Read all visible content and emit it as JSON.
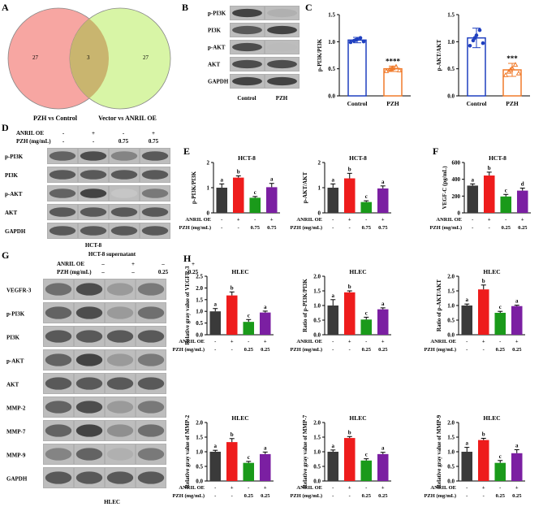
{
  "panels": [
    "A",
    "B",
    "C",
    "D",
    "E",
    "F",
    "G",
    "H"
  ],
  "venn": {
    "left_count": "27",
    "overlap_count": "3",
    "right_count": "27",
    "left_label": "PZH vs Control",
    "right_label": "Vector vs ANRIL OE",
    "colors": {
      "left": "#f7a6a2",
      "right": "#d8f5a6",
      "overlap": "#c9b56f"
    }
  },
  "blotB": {
    "rows": [
      "p-PI3K",
      "PI3K",
      "p-AKT",
      "AKT",
      "GAPDH"
    ],
    "cols": [
      "Control",
      "PZH"
    ],
    "intensity": [
      [
        0.85,
        0.35
      ],
      [
        0.75,
        0.85
      ],
      [
        0.8,
        0.3
      ],
      [
        0.8,
        0.8
      ],
      [
        0.85,
        0.85
      ]
    ]
  },
  "blotD": {
    "cond_rows": [
      {
        "label": "ANRIL OE",
        "vals": [
          "-",
          "+",
          "-",
          "+"
        ]
      },
      {
        "label": "PZH (mg/mL)",
        "vals": [
          "-",
          "-",
          "0.75",
          "0.75"
        ]
      }
    ],
    "rows": [
      "p-PI3K",
      "PI3K",
      "p-AKT",
      "AKT",
      "GAPDH"
    ],
    "intensity": [
      [
        0.7,
        0.8,
        0.55,
        0.75
      ],
      [
        0.75,
        0.75,
        0.75,
        0.75
      ],
      [
        0.7,
        0.85,
        0.25,
        0.6
      ],
      [
        0.75,
        0.75,
        0.75,
        0.75
      ],
      [
        0.75,
        0.75,
        0.75,
        0.75
      ]
    ],
    "footer": "HCT-8"
  },
  "blotG": {
    "header": "HCT-8 supernatant",
    "cond_rows": [
      {
        "label": "ANRIL OE",
        "vals": [
          "–",
          "+",
          "–",
          "+"
        ]
      },
      {
        "label": "PZH (mg/mL)",
        "vals": [
          "–",
          "–",
          "0.25",
          "0.25"
        ]
      }
    ],
    "rows": [
      "VEGFR-3",
      "p-PI3K",
      "PI3K",
      "p-AKT",
      "AKT",
      "MMP-2",
      "MMP-7",
      "MMP-9",
      "GAPDH"
    ],
    "intensity": [
      [
        0.65,
        0.8,
        0.45,
        0.6
      ],
      [
        0.7,
        0.8,
        0.45,
        0.65
      ],
      [
        0.75,
        0.75,
        0.75,
        0.75
      ],
      [
        0.7,
        0.85,
        0.45,
        0.6
      ],
      [
        0.75,
        0.75,
        0.75,
        0.75
      ],
      [
        0.7,
        0.8,
        0.45,
        0.6
      ],
      [
        0.7,
        0.85,
        0.5,
        0.65
      ],
      [
        0.55,
        0.7,
        0.35,
        0.6
      ],
      [
        0.75,
        0.75,
        0.75,
        0.75
      ]
    ],
    "footer": "HLEC"
  },
  "colors": {
    "black": "#3a3a3a",
    "red": "#ee1c1c",
    "green": "#1a9a1a",
    "purple": "#7b1fa2",
    "blue": "#1f3fbf",
    "orange": "#f07a2a"
  },
  "chart_data": [
    {
      "id": "C1",
      "type": "bar",
      "categories": [
        "Control",
        "PZH"
      ],
      "values": [
        1.03,
        0.5
      ],
      "errors": [
        0.05,
        0.05
      ],
      "ylabel": "p-PI3K/PI3K",
      "ylim": [
        0,
        1.5
      ],
      "yticks": [
        "0.0",
        "0.5",
        "1.0",
        "1.5"
      ],
      "sig": [
        "",
        "****"
      ],
      "style": "outline"
    },
    {
      "id": "C2",
      "type": "bar",
      "categories": [
        "Control",
        "PZH"
      ],
      "values": [
        1.07,
        0.48
      ],
      "errors": [
        0.18,
        0.12
      ],
      "ylabel": "p-AKT/AKT",
      "ylim": [
        0,
        1.5
      ],
      "yticks": [
        "0.0",
        "0.5",
        "1.0",
        "1.5"
      ],
      "sig": [
        "",
        "***"
      ],
      "style": "outline"
    },
    {
      "id": "E1",
      "type": "bar",
      "title": "HCT-8",
      "ylabel": "p-PI3K/PI3K",
      "values": [
        1.0,
        1.4,
        0.6,
        1.02
      ],
      "errors": [
        0.15,
        0.07,
        0.05,
        0.15
      ],
      "letters": [
        "a",
        "b",
        "c",
        "a"
      ],
      "ylim": [
        0,
        2
      ],
      "yticks": [
        "0",
        "1",
        "2"
      ],
      "cond": {
        "ANRIL OE": [
          "-",
          "+",
          "-",
          "+"
        ],
        "PZH (mg/mL)": [
          "-",
          "-",
          "0.75",
          "0.75"
        ]
      }
    },
    {
      "id": "E2",
      "type": "bar",
      "title": "HCT-8",
      "ylabel": "p-AKT/AKT",
      "values": [
        1.0,
        1.37,
        0.43,
        0.97
      ],
      "errors": [
        0.15,
        0.2,
        0.05,
        0.1
      ],
      "letters": [
        "a",
        "b",
        "c",
        "a"
      ],
      "ylim": [
        0,
        2
      ],
      "yticks": [
        "0",
        "1",
        "2"
      ],
      "cond": {
        "ANRIL OE": [
          "-",
          "+",
          "-",
          "+"
        ],
        "PZH (mg/mL)": [
          "-",
          "-",
          "0.75",
          "0.75"
        ]
      }
    },
    {
      "id": "F",
      "type": "bar",
      "title": "HCT-8",
      "ylabel": "VEGF-C (pg/mL)",
      "values": [
        325,
        445,
        195,
        265
      ],
      "errors": [
        20,
        40,
        25,
        30
      ],
      "letters": [
        "a",
        "b",
        "c",
        "d"
      ],
      "ylim": [
        0,
        600
      ],
      "yticks": [
        "0",
        "200",
        "400",
        "600"
      ],
      "cond": {
        "ANRIL OE": [
          "-",
          "+",
          "-",
          "+"
        ],
        "PZH (mg/mL)": [
          "-",
          "-",
          "0.25",
          "0.25"
        ]
      }
    },
    {
      "id": "H1",
      "type": "bar",
      "title": "HLEC",
      "ylabel": "Relative gray value of VEGFR-3",
      "values": [
        1.0,
        1.68,
        0.55,
        0.95
      ],
      "errors": [
        0.12,
        0.15,
        0.1,
        0.06
      ],
      "letters": [
        "a",
        "b",
        "c",
        "a"
      ],
      "ylim": [
        0,
        2.5
      ],
      "yticks": [
        "0.0",
        "0.5",
        "1.0",
        "1.5",
        "2.0",
        "2.5"
      ],
      "cond": {
        "ANRIL OE": [
          "-",
          "+",
          "-",
          "+"
        ],
        "PZH (mg/mL)": [
          "-",
          "-",
          "0.25",
          "0.25"
        ]
      }
    },
    {
      "id": "H2",
      "type": "bar",
      "title": "HLEC",
      "ylabel": "Ratio of p-PI3K/PI3K",
      "values": [
        1.0,
        1.45,
        0.52,
        0.87
      ],
      "errors": [
        0.2,
        0.05,
        0.08,
        0.05
      ],
      "letters": [
        "a",
        "b",
        "c",
        "a"
      ],
      "ylim": [
        0,
        2.0
      ],
      "yticks": [
        "0.0",
        "0.5",
        "1.0",
        "1.5",
        "2.0"
      ],
      "cond": {
        "ANRIL OE": [
          "-",
          "+",
          "-",
          "+"
        ],
        "PZH (mg/mL)": [
          "-",
          "-",
          "0.25",
          "0.25"
        ]
      }
    },
    {
      "id": "H3",
      "type": "bar",
      "title": "HLEC",
      "ylabel": "Ratio of p-AKT/AKT",
      "values": [
        1.0,
        1.55,
        0.75,
        0.98
      ],
      "errors": [
        0.05,
        0.15,
        0.05,
        0.03
      ],
      "letters": [
        "a",
        "b",
        "c",
        "a"
      ],
      "ylim": [
        0,
        2.0
      ],
      "yticks": [
        "0.0",
        "0.5",
        "1.0",
        "1.5",
        "2.0"
      ],
      "cond": {
        "ANRIL OE": [
          "-",
          "+",
          "-",
          "+"
        ],
        "PZH (mg/mL)": [
          "-",
          "-",
          "0.25",
          "0.25"
        ]
      }
    },
    {
      "id": "H4",
      "type": "bar",
      "title": "HLEC",
      "ylabel": "Relative gray value of MMP-2",
      "values": [
        1.0,
        1.33,
        0.62,
        0.92
      ],
      "errors": [
        0.05,
        0.12,
        0.05,
        0.07
      ],
      "letters": [
        "a",
        "b",
        "c",
        "a"
      ],
      "ylim": [
        0,
        2.0
      ],
      "yticks": [
        "0.0",
        "0.5",
        "1.0",
        "1.5",
        "2.0"
      ],
      "cond": {
        "ANRIL OE": [
          "-",
          "+",
          "-",
          "+"
        ],
        "PZH (mg/mL)": [
          "-",
          "-",
          "0.25",
          "0.25"
        ]
      }
    },
    {
      "id": "H5",
      "type": "bar",
      "title": "HLEC",
      "ylabel": "Relative gray value of MMP-7",
      "values": [
        1.0,
        1.47,
        0.7,
        0.92
      ],
      "errors": [
        0.06,
        0.05,
        0.06,
        0.06
      ],
      "letters": [
        "a",
        "b",
        "c",
        "a"
      ],
      "ylim": [
        0,
        2.0
      ],
      "yticks": [
        "0.0",
        "0.5",
        "1.0",
        "1.5",
        "2.0"
      ],
      "cond": {
        "ANRIL OE": [
          "-",
          "+",
          "-",
          "+"
        ],
        "PZH (mg/mL)": [
          "-",
          "-",
          "0.25",
          "0.25"
        ]
      }
    },
    {
      "id": "H6",
      "type": "bar",
      "title": "HLEC",
      "ylabel": "Relative gray value of MMP-9",
      "values": [
        1.0,
        1.4,
        0.62,
        0.95
      ],
      "errors": [
        0.15,
        0.06,
        0.08,
        0.12
      ],
      "letters": [
        "a",
        "b",
        "c",
        "a"
      ],
      "ylim": [
        0,
        2.0
      ],
      "yticks": [
        "0.0",
        "0.5",
        "1.0",
        "1.5",
        "2.0"
      ],
      "cond": {
        "ANRIL OE": [
          "-",
          "+",
          "-",
          "+"
        ],
        "PZH (mg/mL)": [
          "-",
          "-",
          "0.25",
          "0.25"
        ]
      }
    }
  ]
}
